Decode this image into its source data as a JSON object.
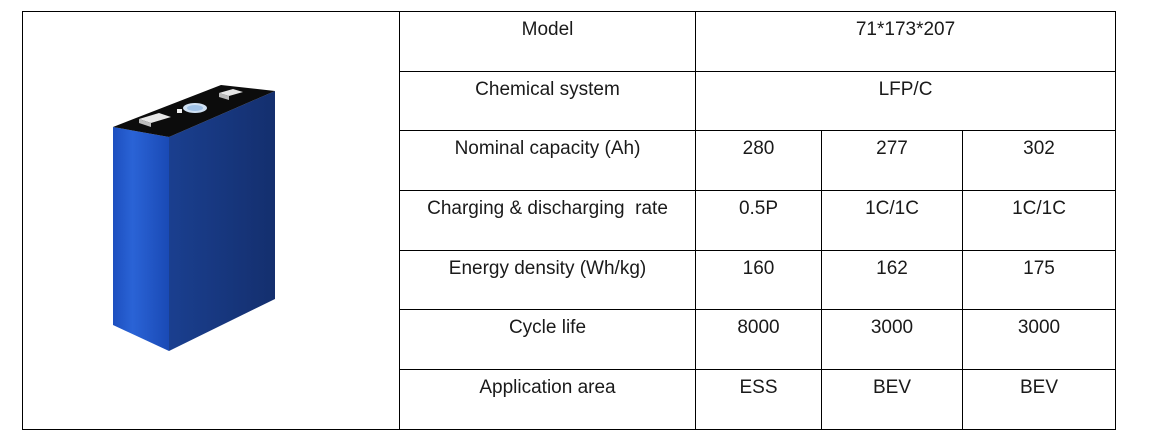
{
  "image": {
    "alt_icon": "battery-cell-image",
    "body_color": "#1f57c8",
    "top_color": "#0c0c0c"
  },
  "spec_table": {
    "rows": [
      {
        "label": "Model",
        "values": [
          "71*173*207"
        ]
      },
      {
        "label": "Chemical system",
        "values": [
          "LFP/C"
        ]
      },
      {
        "label": "Nominal capacity (Ah)",
        "values": [
          "280",
          "277",
          "302"
        ]
      },
      {
        "label": "Charging & discharging  rate",
        "values": [
          "0.5P",
          "1C/1C",
          "1C/1C"
        ]
      },
      {
        "label": "Energy density (Wh/kg)",
        "values": [
          "160",
          "162",
          "175"
        ]
      },
      {
        "label": "Cycle life",
        "values": [
          "8000",
          "3000",
          "3000"
        ]
      },
      {
        "label": "Application area",
        "values": [
          "ESS",
          "BEV",
          "BEV"
        ]
      }
    ]
  }
}
